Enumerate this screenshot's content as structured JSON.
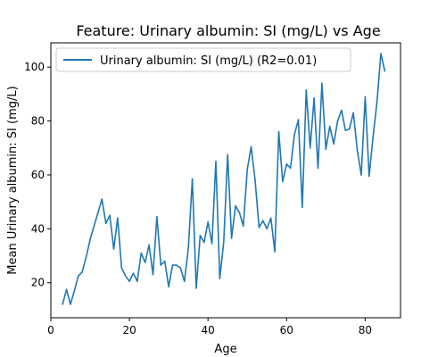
{
  "chart_data": {
    "type": "line",
    "title": "Feature: Urinary albumin: SI (mg/L) vs Age",
    "xlabel": "Age",
    "ylabel": "Mean Urinary albumin: SI (mg/L)",
    "xlim": [
      0,
      89
    ],
    "ylim": [
      7,
      109
    ],
    "xticks": [
      0,
      20,
      40,
      60,
      80
    ],
    "yticks": [
      20,
      40,
      60,
      80,
      100
    ],
    "grid": false,
    "legend": "top-left",
    "series": [
      {
        "name": "Urinary albumin: SI (mg/L) (R2=0.01)",
        "color": "#1f77b4",
        "x": [
          3,
          4,
          5,
          6,
          7,
          8,
          9,
          10,
          11,
          12,
          13,
          14,
          15,
          16,
          17,
          18,
          19,
          20,
          21,
          22,
          23,
          24,
          25,
          26,
          27,
          28,
          29,
          30,
          31,
          32,
          33,
          34,
          35,
          36,
          37,
          38,
          39,
          40,
          41,
          42,
          43,
          44,
          45,
          46,
          47,
          48,
          49,
          50,
          51,
          52,
          53,
          54,
          55,
          56,
          57,
          58,
          59,
          60,
          61,
          62,
          63,
          64,
          65,
          66,
          67,
          68,
          69,
          70,
          71,
          72,
          73,
          74,
          75,
          76,
          77,
          78,
          79,
          80,
          81,
          82,
          83,
          84,
          85
        ],
        "y": [
          12,
          17.5,
          12,
          17,
          22.5,
          24,
          29.5,
          36,
          41,
          46,
          51,
          42,
          45,
          32.5,
          44,
          25.5,
          22.5,
          20.5,
          23.5,
          20.5,
          31,
          27.5,
          34,
          23,
          44.5,
          26.5,
          28,
          18.5,
          26.5,
          26.5,
          25.5,
          20.5,
          33,
          58.5,
          18,
          37.5,
          35,
          42.5,
          34.5,
          65,
          21.5,
          35,
          67.5,
          36.5,
          48.5,
          46,
          41,
          62,
          70.5,
          58,
          40.5,
          43,
          40,
          44,
          31.5,
          76,
          57.5,
          64,
          62.5,
          75,
          80.5,
          48,
          91.5,
          70,
          88.5,
          62.5,
          94,
          69.5,
          78,
          71.5,
          80,
          84,
          76.5,
          77,
          83,
          69,
          60,
          89,
          59.5,
          74,
          87,
          105,
          98.5
        ]
      }
    ]
  }
}
